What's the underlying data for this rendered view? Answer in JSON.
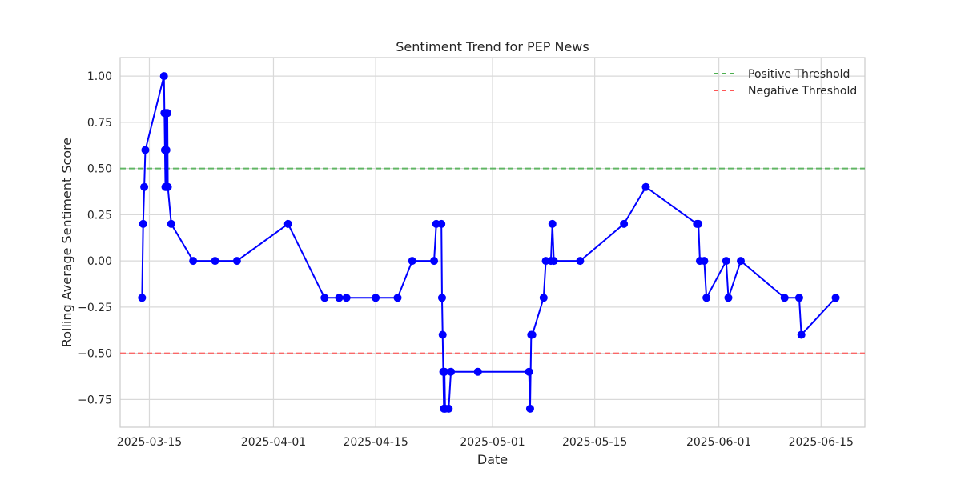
{
  "chart_data": {
    "type": "line",
    "title": "Sentiment Trend for PEP News",
    "xlabel": "Date",
    "ylabel": "Rolling Average Sentiment Score",
    "xlim": [
      "2025-03-11",
      "2025-06-21"
    ],
    "ylim": [
      -0.9,
      1.1
    ],
    "grid": true,
    "legend_position": "top-right",
    "x_ticks": [
      "2025-03-15",
      "2025-04-01",
      "2025-04-15",
      "2025-05-01",
      "2025-05-15",
      "2025-06-01",
      "2025-06-15"
    ],
    "y_ticks": [
      1.0,
      0.75,
      0.5,
      0.25,
      0.0,
      -0.25,
      -0.5,
      -0.75
    ],
    "y_tick_labels": [
      "1.00",
      "0.75",
      "0.50",
      "0.25",
      "0.00",
      "−0.25",
      "−0.50",
      "−0.75"
    ],
    "series": [
      {
        "color": "#0000ff",
        "marker": "circle",
        "x": [
          "2025-03-14",
          "2025-03-14",
          "2025-03-14",
          "2025-03-14",
          "2025-03-17",
          "2025-03-17",
          "2025-03-17",
          "2025-03-17",
          "2025-03-17",
          "2025-03-17",
          "2025-03-17",
          "2025-03-17",
          "2025-03-17",
          "2025-03-18",
          "2025-03-21",
          "2025-03-24",
          "2025-03-27",
          "2025-04-03",
          "2025-04-08",
          "2025-04-10",
          "2025-04-11",
          "2025-04-15",
          "2025-04-18",
          "2025-04-20",
          "2025-04-23",
          "2025-04-23",
          "2025-04-24",
          "2025-04-24",
          "2025-04-24",
          "2025-04-24",
          "2025-04-24",
          "2025-04-24",
          "2025-04-24",
          "2025-04-25",
          "2025-04-25",
          "2025-04-29",
          "2025-05-06",
          "2025-05-06",
          "2025-05-06",
          "2025-05-06",
          "2025-05-08",
          "2025-05-08",
          "2025-05-09",
          "2025-05-09",
          "2025-05-09",
          "2025-05-13",
          "2025-05-19",
          "2025-05-22",
          "2025-05-29",
          "2025-05-29",
          "2025-05-29",
          "2025-05-30",
          "2025-05-30",
          "2025-06-02",
          "2025-06-02",
          "2025-06-04",
          "2025-06-10",
          "2025-06-12",
          "2025-06-12",
          "2025-06-17"
        ],
        "y": [
          -0.2,
          0.2,
          0.4,
          0.6,
          1.0,
          0.8,
          0.6,
          0.4,
          0.8,
          0.6,
          0.4,
          0.8,
          0.4,
          0.2,
          0.0,
          0.0,
          0.0,
          0.2,
          -0.2,
          -0.2,
          -0.2,
          -0.2,
          -0.2,
          0.0,
          0.0,
          0.2,
          0.2,
          -0.2,
          -0.4,
          -0.6,
          -0.8,
          -0.6,
          -0.8,
          -0.8,
          -0.6,
          -0.6,
          -0.6,
          -0.8,
          -0.4,
          -0.4,
          -0.2,
          0.0,
          0.0,
          0.2,
          0.0,
          0.0,
          0.2,
          0.4,
          0.2,
          0.2,
          0.0,
          0.0,
          -0.2,
          0.0,
          -0.2,
          0.0,
          -0.2,
          -0.2,
          -0.4,
          -0.2
        ]
      }
    ],
    "reference_lines": [
      {
        "name": "Positive Threshold",
        "y": 0.5,
        "color": "#4caf50",
        "style": "dashed"
      },
      {
        "name": "Negative Threshold",
        "y": -0.5,
        "color": "#ff5555",
        "style": "dashed"
      }
    ]
  }
}
